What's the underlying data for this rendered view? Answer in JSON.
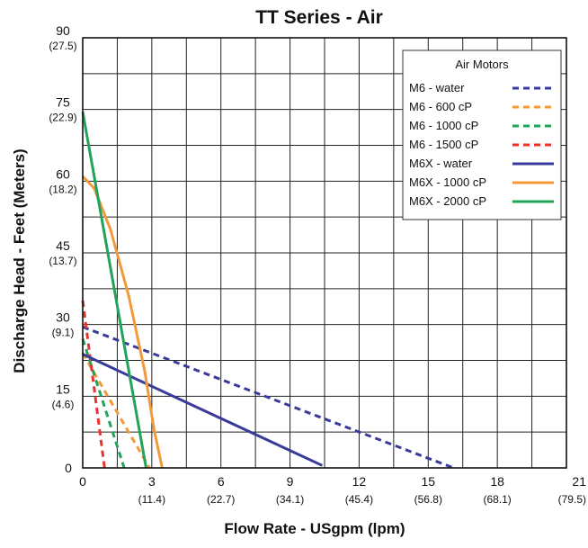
{
  "chart_data": {
    "type": "line",
    "title": "TT Series - Air",
    "xlabel": "Flow Rate - USgpm (lpm)",
    "ylabel": "Discharge Head - Feet (Meters)",
    "xlim": [
      0,
      21
    ],
    "ylim": [
      0,
      90
    ],
    "grid": true,
    "x_ticks": [
      {
        "value": 0,
        "label": "0",
        "sub": ""
      },
      {
        "value": 3,
        "label": "3",
        "sub": "(11.4)"
      },
      {
        "value": 6,
        "label": "6",
        "sub": "(22.7)"
      },
      {
        "value": 9,
        "label": "9",
        "sub": "(34.1)"
      },
      {
        "value": 12,
        "label": "12",
        "sub": "(45.4)"
      },
      {
        "value": 15,
        "label": "15",
        "sub": "(56.8)"
      },
      {
        "value": 18,
        "label": "18",
        "sub": "(68.1)"
      },
      {
        "value": 21,
        "label": "21",
        "sub": "(79.5)"
      }
    ],
    "y_ticks": [
      {
        "value": 0,
        "label": "0",
        "sub": ""
      },
      {
        "value": 15,
        "label": "15",
        "sub": "(4.6)"
      },
      {
        "value": 30,
        "label": "30",
        "sub": "(9.1)"
      },
      {
        "value": 45,
        "label": "45",
        "sub": "(13.7)"
      },
      {
        "value": 60,
        "label": "60",
        "sub": "(18.2)"
      },
      {
        "value": 75,
        "label": "75",
        "sub": "(22.9)"
      },
      {
        "value": 90,
        "label": "90",
        "sub": "(27.5)"
      }
    ],
    "legend": {
      "title": "Air Motors",
      "placement": "top-right"
    },
    "series": [
      {
        "name": "M6 - water",
        "color": "#3a3a9a",
        "dash": true,
        "x": [
          0,
          16.1
        ],
        "y": [
          29.5,
          0
        ]
      },
      {
        "name": "M6 - 600 cP",
        "color": "#f29a3a",
        "dash": true,
        "x": [
          0,
          2.9
        ],
        "y": [
          24,
          0
        ]
      },
      {
        "name": "M6 - 1000 cP",
        "color": "#21a35a",
        "dash": true,
        "x": [
          0,
          1.8
        ],
        "y": [
          27,
          0
        ]
      },
      {
        "name": "M6 - 1500 cP",
        "color": "#e8342e",
        "dash": true,
        "x": [
          0,
          0.95
        ],
        "y": [
          35,
          0
        ]
      },
      {
        "name": "M6X - water",
        "color": "#3a3a9a",
        "dash": false,
        "x": [
          0,
          10.4
        ],
        "y": [
          23.8,
          0.5
        ]
      },
      {
        "name": "M6X - 1000 cP",
        "color": "#f29a3a",
        "dash": false,
        "x": [
          0,
          0.5,
          1.2,
          2.0,
          2.7,
          3.1,
          3.45
        ],
        "y": [
          61,
          58.5,
          50,
          36,
          20,
          8,
          0
        ]
      },
      {
        "name": "M6X - 2000 cP",
        "color": "#21a35a",
        "dash": false,
        "x": [
          0,
          2.75
        ],
        "y": [
          74.5,
          0
        ]
      }
    ]
  }
}
